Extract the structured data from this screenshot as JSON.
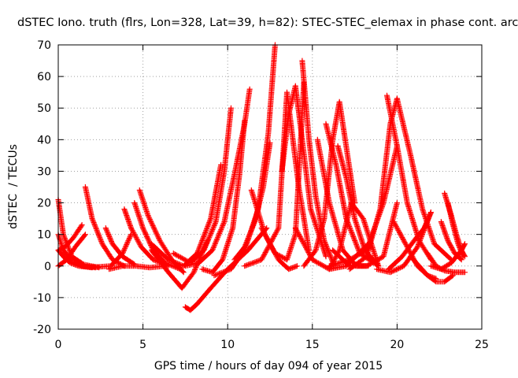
{
  "chart_data": {
    "type": "scatter",
    "title": "dSTEC Iono. truth (flrs, Lon=328, Lat=39, h=82): STEC-STEC_elemax in phase cont. arc",
    "xlabel": "GPS time / hours of day 094 of year 2015",
    "ylabel": "dSTEC  / TECUs",
    "xlim": [
      0,
      25
    ],
    "ylim": [
      -20,
      70
    ],
    "xticks": [
      "0",
      "5",
      "10",
      "15",
      "20",
      "25"
    ],
    "yticks": [
      "-20",
      "-10",
      "0",
      "10",
      "20",
      "30",
      "40",
      "50",
      "60",
      "70"
    ],
    "grid": true,
    "marker": "+",
    "color": "#ff0000",
    "arcs": [
      {
        "x": [
          0.0,
          0.3,
          0.8,
          1.5,
          2.4
        ],
        "y": [
          21,
          10,
          3,
          0.5,
          -0.5
        ]
      },
      {
        "x": [
          0.0,
          0.3,
          0.8,
          1.4,
          2.2
        ],
        "y": [
          10,
          5,
          1.5,
          0,
          -0.5
        ]
      },
      {
        "x": [
          0.0,
          0.4,
          0.9,
          1.4
        ],
        "y": [
          5,
          6,
          9,
          13
        ]
      },
      {
        "x": [
          0.0,
          0.5,
          1.0,
          1.6
        ],
        "y": [
          0,
          2,
          6,
          10
        ]
      },
      {
        "x": [
          0.0,
          0.3,
          0.7,
          1.2,
          2.0
        ],
        "y": [
          5,
          3,
          1,
          0,
          -0.5
        ]
      },
      {
        "x": [
          1.6,
          2.0,
          2.6,
          3.2,
          3.9
        ],
        "y": [
          25,
          15,
          7,
          2,
          0
        ]
      },
      {
        "x": [
          2.8,
          3.2,
          3.8,
          4.5
        ],
        "y": [
          12,
          7,
          3,
          0.5
        ]
      },
      {
        "x": [
          1.5,
          2.3,
          3.1,
          3.8,
          4.3
        ],
        "y": [
          0,
          -0.3,
          0,
          4,
          10
        ]
      },
      {
        "x": [
          3.9,
          4.3,
          4.9,
          5.6,
          6.5
        ],
        "y": [
          18,
          12,
          6,
          2,
          0
        ]
      },
      {
        "x": [
          4.5,
          5.0,
          5.6,
          6.3,
          7.2
        ],
        "y": [
          20,
          12,
          5,
          1,
          -1
        ]
      },
      {
        "x": [
          4.8,
          5.3,
          6.0,
          6.7,
          7.4
        ],
        "y": [
          24,
          16,
          8,
          2,
          -2
        ]
      },
      {
        "x": [
          3.0,
          3.8,
          4.6,
          5.4,
          6.3
        ],
        "y": [
          -1,
          0,
          0,
          -0.5,
          0
        ]
      },
      {
        "x": [
          5.5,
          6.5,
          7.3,
          8.0,
          8.8
        ],
        "y": [
          5,
          -2,
          -7,
          -2,
          8
        ]
      },
      {
        "x": [
          5.5,
          6.5,
          7.4,
          8.2,
          9.0,
          9.6
        ],
        "y": [
          7,
          2,
          0,
          4,
          15,
          32
        ]
      },
      {
        "x": [
          7.5,
          7.8,
          8.2,
          9.0,
          10.0,
          11.2,
          12.3
        ],
        "y": [
          -13,
          -14,
          -12,
          -7,
          -1,
          5,
          12
        ]
      },
      {
        "x": [
          6.8,
          7.8,
          8.6,
          9.3,
          9.8,
          10.2
        ],
        "y": [
          4,
          1,
          5,
          14,
          30,
          50
        ]
      },
      {
        "x": [
          7.5,
          8.3,
          9.1,
          9.8,
          10.4,
          11.0,
          11.3
        ],
        "y": [
          0,
          1,
          5,
          14,
          29,
          45,
          56
        ]
      },
      {
        "x": [
          8.5,
          9.1,
          9.7,
          10.3,
          10.7,
          11.0
        ],
        "y": [
          -1,
          -2,
          2,
          12,
          29,
          46
        ]
      },
      {
        "x": [
          9.2,
          10.2,
          11.0,
          11.8,
          12.4,
          12.8
        ],
        "y": [
          -3,
          -1,
          5,
          18,
          42,
          70
        ]
      },
      {
        "x": [
          10.4,
          11.0,
          11.6,
          12.1,
          12.5
        ],
        "y": [
          2,
          6,
          14,
          25,
          39
        ]
      },
      {
        "x": [
          11.0,
          12.0,
          13.0,
          13.5,
          14.2,
          14.8
        ],
        "y": [
          0,
          2,
          12,
          55,
          25,
          5
        ]
      },
      {
        "x": [
          11.4,
          12.2,
          13.0,
          13.6,
          14.1
        ],
        "y": [
          24,
          10,
          2,
          -1,
          0
        ]
      },
      {
        "x": [
          12.0,
          12.8,
          13.5,
          14.0,
          14.5
        ],
        "y": [
          12,
          4,
          2,
          10,
          58
        ]
      },
      {
        "x": [
          13.2,
          13.6,
          14.0,
          14.4,
          14.9,
          15.8
        ],
        "y": [
          30,
          48,
          57,
          40,
          18,
          3
        ]
      },
      {
        "x": [
          14.4,
          14.8,
          15.2,
          15.7,
          16.3
        ],
        "y": [
          65,
          40,
          22,
          8,
          0
        ]
      },
      {
        "x": [
          14.0,
          15.0,
          16.0,
          17.0,
          18.3
        ],
        "y": [
          12,
          2,
          -1,
          0,
          7
        ]
      },
      {
        "x": [
          14.5,
          15.2,
          15.7,
          16.2,
          16.6,
          17.5
        ],
        "y": [
          0,
          5,
          15,
          40,
          52,
          20
        ]
      },
      {
        "x": [
          15.3,
          16.0,
          16.8,
          17.6,
          18.3
        ],
        "y": [
          40,
          20,
          5,
          0,
          0
        ]
      },
      {
        "x": [
          15.8,
          16.4,
          17.0,
          17.8,
          18.9
        ],
        "y": [
          45,
          32,
          15,
          4,
          0
        ]
      },
      {
        "x": [
          16.0,
          16.6,
          17.3,
          18.0,
          18.9
        ],
        "y": [
          -1,
          5,
          20,
          15,
          0
        ]
      },
      {
        "x": [
          16.5,
          17.0,
          17.5,
          18.1,
          18.9
        ],
        "y": [
          38,
          28,
          15,
          5,
          0
        ]
      },
      {
        "x": [
          16.2,
          17.2,
          18.2,
          19.2,
          20.0
        ],
        "y": [
          5,
          0,
          0,
          3,
          20
        ]
      },
      {
        "x": [
          16.0,
          17.2,
          18.2,
          19.2,
          20.0
        ],
        "y": [
          0,
          2,
          5,
          20,
          38
        ]
      },
      {
        "x": [
          17.2,
          18.2,
          19.0,
          19.6,
          20.0
        ],
        "y": [
          -1,
          3,
          18,
          45,
          53
        ]
      },
      {
        "x": [
          19.4,
          20.0,
          20.6,
          21.3,
          22.0
        ],
        "y": [
          54,
          38,
          20,
          8,
          2
        ]
      },
      {
        "x": [
          20.0,
          20.8,
          21.5,
          22.2,
          23.2
        ],
        "y": [
          53,
          35,
          18,
          7,
          2
        ]
      },
      {
        "x": [
          19.5,
          20.3,
          21.0,
          21.6,
          22.0
        ],
        "y": [
          -1,
          3,
          8,
          12,
          17
        ]
      },
      {
        "x": [
          19.8,
          20.6,
          21.2,
          21.8,
          22.3
        ],
        "y": [
          14,
          6,
          0,
          -3,
          -4
        ]
      },
      {
        "x": [
          18.8,
          19.6,
          20.4,
          21.2,
          22.0
        ],
        "y": [
          -1,
          -2,
          0,
          6,
          17
        ]
      },
      {
        "x": [
          20.8,
          21.3,
          21.8,
          22.3,
          22.8,
          23.3
        ],
        "y": [
          3,
          0,
          -3,
          -5,
          -5,
          -3
        ]
      },
      {
        "x": [
          22.8,
          23.2,
          23.5,
          23.8,
          24.0
        ],
        "y": [
          23,
          16,
          10,
          5,
          3
        ]
      },
      {
        "x": [
          23.0,
          23.3,
          23.6,
          23.9
        ],
        "y": [
          20,
          13,
          7,
          3
        ]
      },
      {
        "x": [
          21.8,
          22.3,
          22.8,
          23.4,
          24.0
        ],
        "y": [
          4,
          0,
          -1.5,
          -2,
          -2
        ]
      },
      {
        "x": [
          22.6,
          23.0,
          23.4,
          23.8
        ],
        "y": [
          14,
          8,
          4,
          2
        ]
      },
      {
        "x": [
          22.0,
          22.6,
          23.2,
          23.8,
          24.0
        ],
        "y": [
          0,
          -1,
          1,
          5,
          7
        ]
      }
    ]
  }
}
